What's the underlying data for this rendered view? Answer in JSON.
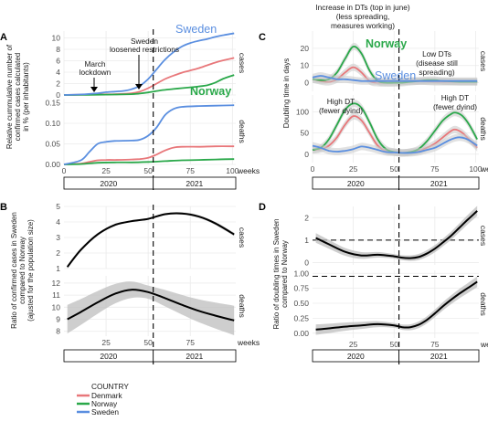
{
  "panel_labels": [
    "A",
    "B",
    "C",
    "D"
  ],
  "colors": {
    "Denmark": "#e8777a",
    "Norway": "#2aa84a",
    "Sweden": "#5b8fe0",
    "ribbon": "#bdbdbd",
    "fit": "#000000",
    "grid": "#ebebeb"
  },
  "legend": {
    "title": "COUNTRY",
    "items": [
      {
        "name": "Denmark",
        "color": "#e8777a"
      },
      {
        "name": "Norway",
        "color": "#2aa84a"
      },
      {
        "name": "Sweden",
        "color": "#5b8fe0"
      }
    ]
  },
  "year_strip": [
    "2020",
    "2021"
  ],
  "weeks_label": "weeks",
  "chart_data": [
    {
      "id": "A",
      "type": "line",
      "ylabel": "Relative cummulative number of confirmed cases calculated in % (per inhabitants)",
      "xlabel": "weeks",
      "x_ticks": [
        0,
        25,
        50,
        75,
        100
      ],
      "xlim": [
        0,
        102
      ],
      "vline": 53,
      "facets": [
        {
          "name": "cases",
          "ylim": [
            0,
            11.2
          ],
          "y_ticks": [
            0,
            2,
            4,
            6,
            8,
            10
          ],
          "series": [
            {
              "name": "Denmark",
              "color": "#e8777a",
              "x": [
                0,
                10,
                20,
                30,
                40,
                45,
                50,
                55,
                60,
                65,
                70,
                75,
                80,
                85,
                90,
                95,
                101
              ],
              "y": [
                0,
                0.05,
                0.1,
                0.15,
                0.3,
                0.6,
                1.2,
                2.0,
                2.8,
                3.4,
                3.9,
                4.3,
                4.7,
                5.2,
                5.7,
                6.1,
                6.5
              ]
            },
            {
              "name": "Norway",
              "color": "#2aa84a",
              "x": [
                0,
                10,
                20,
                30,
                40,
                45,
                50,
                55,
                60,
                65,
                70,
                75,
                80,
                85,
                90,
                95,
                101
              ],
              "y": [
                0,
                0.02,
                0.05,
                0.08,
                0.15,
                0.25,
                0.45,
                0.7,
                0.9,
                1.05,
                1.2,
                1.35,
                1.5,
                1.7,
                2.2,
                2.9,
                3.5
              ]
            },
            {
              "name": "Sweden",
              "color": "#5b8fe0",
              "x": [
                0,
                10,
                20,
                25,
                30,
                35,
                40,
                45,
                50,
                55,
                60,
                65,
                70,
                75,
                80,
                85,
                90,
                95,
                101
              ],
              "y": [
                0,
                0.1,
                0.3,
                0.5,
                0.6,
                0.7,
                1.0,
                1.6,
                2.8,
                4.5,
                6.2,
                7.5,
                8.5,
                9.1,
                9.5,
                9.8,
                10.2,
                10.5,
                10.8
              ]
            }
          ],
          "annotations": [
            "Sweden",
            "Norway",
            "March lockdown",
            "Sweden loosened restrictions"
          ]
        },
        {
          "name": "deaths",
          "ylim": [
            0,
            0.16
          ],
          "y_ticks": [
            0.0,
            0.05,
            0.1,
            0.15
          ],
          "series": [
            {
              "name": "Denmark",
              "color": "#e8777a",
              "x": [
                0,
                10,
                15,
                20,
                25,
                30,
                40,
                45,
                50,
                55,
                60,
                65,
                70,
                80,
                90,
                101
              ],
              "y": [
                0,
                0.002,
                0.006,
                0.01,
                0.011,
                0.011,
                0.012,
                0.013,
                0.016,
                0.024,
                0.034,
                0.041,
                0.043,
                0.043,
                0.044,
                0.044
              ]
            },
            {
              "name": "Norway",
              "color": "#2aa84a",
              "x": [
                0,
                10,
                20,
                30,
                40,
                50,
                60,
                70,
                80,
                90,
                101
              ],
              "y": [
                0,
                0.001,
                0.004,
                0.005,
                0.005,
                0.006,
                0.008,
                0.01,
                0.011,
                0.012,
                0.013
              ]
            },
            {
              "name": "Sweden",
              "color": "#5b8fe0",
              "x": [
                0,
                10,
                15,
                20,
                25,
                30,
                40,
                45,
                50,
                55,
                60,
                65,
                70,
                80,
                90,
                101
              ],
              "y": [
                0,
                0.01,
                0.03,
                0.05,
                0.055,
                0.057,
                0.058,
                0.06,
                0.07,
                0.09,
                0.12,
                0.135,
                0.14,
                0.142,
                0.143,
                0.144
              ]
            }
          ]
        }
      ]
    },
    {
      "id": "B",
      "type": "line",
      "ylabel": "Ratio of confirmed cases in Sweden compared to Norway (ajusted for the population size)",
      "xlabel": "weeks",
      "x_ticks": [
        25,
        50,
        75
      ],
      "xlim": [
        0,
        102
      ],
      "vline": 53,
      "facets": [
        {
          "name": "cases",
          "ylim": [
            1,
            5
          ],
          "y_ticks": [
            1,
            2,
            3,
            4,
            5
          ],
          "fit": {
            "x": [
              2,
              10,
              20,
              30,
              40,
              50,
              60,
              70,
              80,
              90,
              101
            ],
            "y": [
              1.1,
              2.2,
              3.2,
              3.8,
              4.05,
              4.2,
              4.5,
              4.55,
              4.35,
              3.9,
              3.2
            ]
          },
          "band": 0.05
        },
        {
          "name": "deaths",
          "ylim": [
            7.6,
            12.6
          ],
          "y_ticks": [
            8,
            9,
            10,
            11,
            12
          ],
          "fit": {
            "x": [
              2,
              10,
              20,
              30,
              40,
              50,
              60,
              70,
              80,
              90,
              101
            ],
            "y": [
              9.0,
              9.6,
              10.4,
              11.1,
              11.45,
              11.25,
              10.75,
              10.2,
              9.7,
              9.3,
              8.9
            ]
          },
          "band": 0.55
        }
      ]
    },
    {
      "id": "C",
      "type": "line",
      "ylabel": "Doubling time in days",
      "xlabel": "weeks",
      "x_ticks": [
        0,
        25,
        50,
        75,
        100
      ],
      "xlim": [
        0,
        102
      ],
      "vline": 53,
      "facets": [
        {
          "name": "cases",
          "ylim": [
            -5,
            30
          ],
          "y_ticks": [
            0,
            10,
            20
          ],
          "series": [
            {
              "name": "Denmark",
              "color": "#e8777a",
              "x": [
                0,
                5,
                10,
                15,
                20,
                25,
                30,
                35,
                40,
                45,
                50,
                55,
                60,
                65,
                70,
                75,
                80,
                85,
                90,
                95,
                101
              ],
              "y": [
                2,
                1,
                0.5,
                2,
                6,
                9,
                6,
                1,
                0,
                0,
                0,
                0.5,
                1,
                1,
                0.8,
                0.5,
                0.5,
                0.5,
                0.5,
                0.5,
                0.5
              ]
            },
            {
              "name": "Norway",
              "color": "#2aa84a",
              "x": [
                0,
                5,
                10,
                15,
                20,
                25,
                30,
                35,
                40,
                45,
                50,
                55,
                60,
                65,
                70,
                75,
                80,
                85,
                90,
                95,
                101
              ],
              "y": [
                2,
                1.5,
                2,
                6,
                14,
                21,
                17,
                7,
                1,
                0,
                0,
                0,
                0.5,
                1,
                1.5,
                1.5,
                1,
                0.8,
                0.5,
                0.5,
                0.5
              ]
            },
            {
              "name": "Sweden",
              "color": "#5b8fe0",
              "x": [
                0,
                5,
                10,
                15,
                20,
                25,
                30,
                35,
                40,
                45,
                50,
                55,
                60,
                65,
                70,
                75,
                80,
                85,
                90,
                95,
                101
              ],
              "y": [
                3,
                4,
                3,
                2,
                2,
                1.5,
                1,
                1,
                1,
                1,
                1,
                1,
                1,
                1,
                1,
                1,
                1,
                1,
                1,
                1,
                1
              ]
            }
          ],
          "annotations": [
            "Increase in DTs (top in june) (less spreading, measures working)",
            "Norway",
            "Sweden",
            "Low DTs (disease still spreading)"
          ]
        },
        {
          "name": "deaths",
          "ylim": [
            -20,
            140
          ],
          "y_ticks": [
            0,
            50,
            100
          ],
          "series": [
            {
              "name": "Denmark",
              "color": "#e8777a",
              "x": [
                0,
                5,
                10,
                15,
                20,
                25,
                30,
                35,
                40,
                45,
                50,
                55,
                60,
                65,
                70,
                75,
                80,
                85,
                88,
                92,
                96,
                101
              ],
              "y": [
                10,
                12,
                20,
                40,
                70,
                90,
                80,
                50,
                20,
                8,
                5,
                3,
                5,
                8,
                15,
                25,
                40,
                55,
                58,
                50,
                35,
                15
              ]
            },
            {
              "name": "Norway",
              "color": "#2aa84a",
              "x": [
                0,
                5,
                10,
                15,
                20,
                25,
                30,
                35,
                40,
                45,
                50,
                55,
                60,
                65,
                70,
                75,
                80,
                85,
                88,
                92,
                96,
                101
              ],
              "y": [
                10,
                15,
                35,
                70,
                105,
                120,
                110,
                75,
                35,
                12,
                5,
                3,
                5,
                12,
                30,
                55,
                80,
                95,
                98,
                90,
                70,
                35
              ]
            },
            {
              "name": "Sweden",
              "color": "#5b8fe0",
              "x": [
                0,
                5,
                10,
                15,
                20,
                25,
                30,
                35,
                40,
                45,
                50,
                55,
                60,
                65,
                70,
                75,
                80,
                85,
                90,
                95,
                101
              ],
              "y": [
                20,
                15,
                8,
                6,
                8,
                12,
                18,
                15,
                10,
                5,
                4,
                3,
                3,
                5,
                10,
                15,
                25,
                35,
                40,
                35,
                20
              ]
            }
          ],
          "annotations": [
            "High DT (fewer dyind)",
            "High DT (fewer dyind)"
          ]
        }
      ]
    },
    {
      "id": "D",
      "type": "line",
      "ylabel": "Ratio of doubling times in Sweden compared to Norway",
      "xlabel": "weeks",
      "x_ticks": [
        25,
        50,
        75
      ],
      "xlim": [
        0,
        102
      ],
      "vline": 53,
      "facets": [
        {
          "name": "cases",
          "ylim": [
            -0.1,
            2.5
          ],
          "y_ticks": [
            0,
            1,
            2
          ],
          "hline": 1,
          "fit": {
            "x": [
              2,
              10,
              20,
              30,
              40,
              50,
              55,
              60,
              65,
              70,
              75,
              80,
              85,
              90,
              95,
              101
            ],
            "y": [
              1.1,
              0.82,
              0.48,
              0.32,
              0.35,
              0.28,
              0.22,
              0.2,
              0.25,
              0.4,
              0.62,
              0.9,
              1.2,
              1.55,
              1.9,
              2.3
            ]
          },
          "band": 0.1
        },
        {
          "name": "deaths",
          "ylim": [
            -0.08,
            1.05
          ],
          "y_ticks": [
            0.0,
            0.25,
            0.5,
            0.75,
            1.0
          ],
          "hline": 0.95,
          "fit": {
            "x": [
              2,
              10,
              20,
              30,
              40,
              50,
              55,
              60,
              65,
              70,
              75,
              80,
              85,
              90,
              95,
              101
            ],
            "y": [
              0.06,
              0.08,
              0.11,
              0.13,
              0.15,
              0.13,
              0.1,
              0.1,
              0.14,
              0.22,
              0.33,
              0.45,
              0.56,
              0.66,
              0.75,
              0.86
            ]
          },
          "band": 0.04
        }
      ]
    }
  ]
}
